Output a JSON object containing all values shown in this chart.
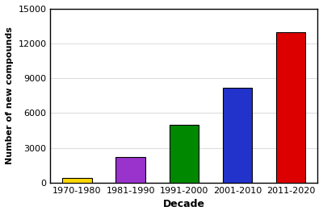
{
  "categories": [
    "1970-1980",
    "1981-1990",
    "1991-2000",
    "2001-2010",
    "2011-2020"
  ],
  "values": [
    400,
    2200,
    5000,
    8200,
    13000
  ],
  "bar_colors": [
    "#FFD700",
    "#9933CC",
    "#008800",
    "#2233CC",
    "#DD0000"
  ],
  "xlabel": "Decade",
  "ylabel": "Number of new compounds",
  "ylim": [
    0,
    15000
  ],
  "yticks": [
    0,
    3000,
    6000,
    9000,
    12000,
    15000
  ],
  "background_color": "#ffffff",
  "edge_color": "#000000",
  "grid_color": "#dddddd",
  "bar_width": 0.55,
  "ylabel_fontsize": 8,
  "xlabel_fontsize": 9,
  "tick_fontsize": 8
}
